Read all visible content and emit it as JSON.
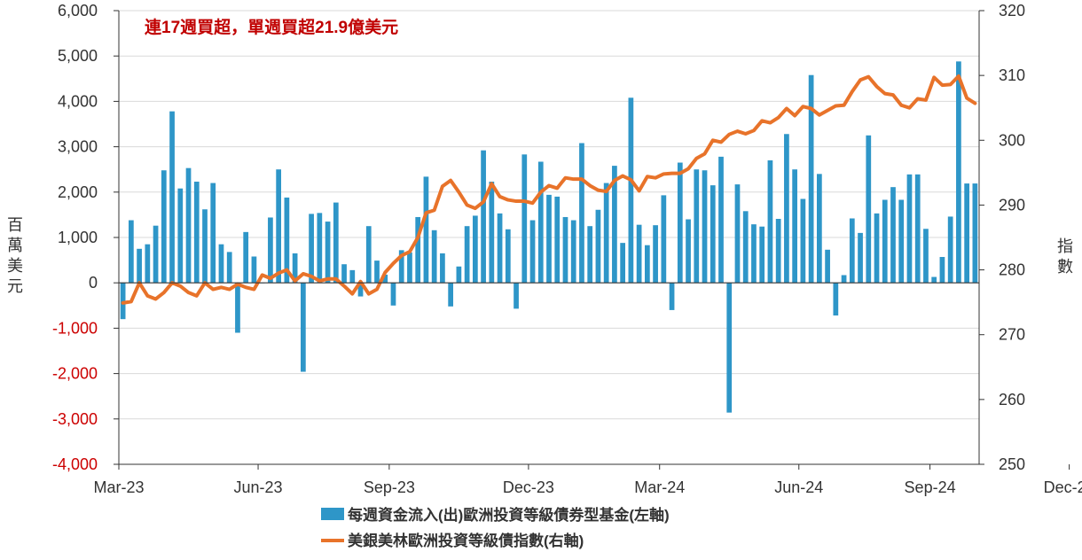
{
  "chart_data": {
    "type": "bar+line",
    "annotation": "連17週買超，單週買超21.9億美元",
    "left_axis": {
      "label": "百萬美元",
      "range": [
        -4000,
        6000
      ],
      "ticks": [
        -4000,
        -3000,
        -2000,
        -1000,
        0,
        1000,
        2000,
        3000,
        4000,
        5000,
        6000
      ],
      "tick_labels": [
        "-4,000",
        "-3,000",
        "-2,000",
        "-1,000",
        "0",
        "1,000",
        "2,000",
        "3,000",
        "4,000",
        "5,000",
        "6,000"
      ]
    },
    "right_axis": {
      "label": "指數",
      "range": [
        250,
        320
      ],
      "ticks": [
        250,
        260,
        270,
        280,
        290,
        300,
        310,
        320
      ],
      "tick_labels": [
        "250",
        "260",
        "270",
        "280",
        "290",
        "300",
        "310",
        "320"
      ]
    },
    "x_tick_labels": [
      "Mar-23",
      "Jun-23",
      "Sep-23",
      "Dec-23",
      "Mar-24",
      "Jun-24",
      "Sep-24",
      "Dec-24"
    ],
    "x_tick_weeks": [
      0,
      17,
      33,
      50,
      66,
      83,
      99,
      116
    ],
    "grid": true,
    "legend_position": "bottom",
    "series": [
      {
        "name": "每週資金流入(出)歐洲投資等級債券型基金(左軸)",
        "type": "bar",
        "axis": "left",
        "color": "#2e96c8",
        "values": [
          -800,
          1380,
          750,
          850,
          1260,
          2480,
          3780,
          2080,
          2530,
          2230,
          1620,
          2200,
          850,
          680,
          -1100,
          1120,
          580,
          0,
          1440,
          2500,
          1880,
          650,
          -1960,
          1520,
          1540,
          1350,
          1770,
          410,
          280,
          -300,
          1250,
          490,
          180,
          -500,
          720,
          670,
          1450,
          2340,
          1160,
          650,
          -520,
          360,
          1250,
          1480,
          2920,
          2230,
          1530,
          1180,
          -570,
          2830,
          1380,
          2670,
          1940,
          1900,
          1450,
          1380,
          3080,
          1250,
          1610,
          2200,
          2580,
          880,
          4080,
          1280,
          830,
          1270,
          1930,
          -600,
          2650,
          1400,
          2500,
          2480,
          2150,
          2780,
          -2860,
          2170,
          1580,
          1290,
          1240,
          2700,
          1410,
          3280,
          2500,
          1850,
          4580,
          2400,
          730,
          -720,
          170,
          1420,
          1100,
          3250,
          1530,
          1830,
          2110,
          1830,
          2390,
          2390,
          1190,
          130,
          570,
          1460,
          4880,
          2190,
          2190
        ]
      },
      {
        "name": "美銀美林歐洲投資等級債指數(右軸)",
        "type": "line",
        "axis": "right",
        "color": "#e8732a",
        "values": [
          274.9,
          275.1,
          278.0,
          276.0,
          275.5,
          276.5,
          278.0,
          277.5,
          276.5,
          276.0,
          278.0,
          277.0,
          277.3,
          277.0,
          277.8,
          277.3,
          277.0,
          279.2,
          278.7,
          279.5,
          280.0,
          278.3,
          279.4,
          279.0,
          278.3,
          278.6,
          278.6,
          277.5,
          276.3,
          278.2,
          276.3,
          277.0,
          279.6,
          281.0,
          282.2,
          282.8,
          285.0,
          288.8,
          289.2,
          292.9,
          293.8,
          292.0,
          290.0,
          289.5,
          290.5,
          293.3,
          291.3,
          290.8,
          290.6,
          290.6,
          290.3,
          292.0,
          293.0,
          292.6,
          294.2,
          294.0,
          294.0,
          293.0,
          292.3,
          292.1,
          293.8,
          294.5,
          293.9,
          292.2,
          294.4,
          294.2,
          294.8,
          294.9,
          294.9,
          295.6,
          297.2,
          297.9,
          300.0,
          299.7,
          300.9,
          301.4,
          301.0,
          301.5,
          303.0,
          302.7,
          303.5,
          304.9,
          303.8,
          305.2,
          304.9,
          303.9,
          304.6,
          305.3,
          305.4,
          307.5,
          309.3,
          309.8,
          308.3,
          307.2,
          307.0,
          305.4,
          305.0,
          306.4,
          306.2,
          309.7,
          308.5,
          308.6,
          309.9,
          306.5,
          305.7
        ]
      }
    ]
  }
}
